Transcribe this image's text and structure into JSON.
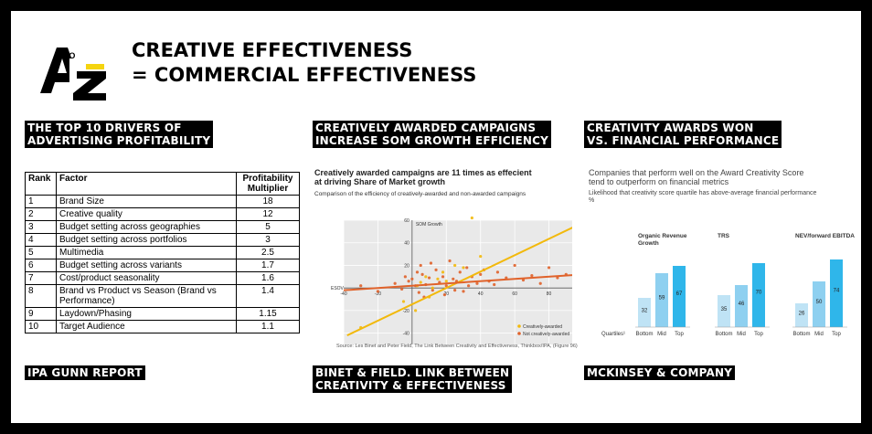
{
  "title": {
    "line1": "CREATIVE EFFECTIVENESS",
    "line2": "= COMMERCIAL EFFECTIVENESS"
  },
  "col1": {
    "heading_line1": "THE TOP 10 DRIVERS OF",
    "heading_line2": "ADVERTISING PROFITABILITY",
    "table": {
      "headers": [
        "Rank",
        "Factor",
        "Profitability Multiplier"
      ],
      "rows": [
        [
          "1",
          "Brand Size",
          "18"
        ],
        [
          "2",
          "Creative quality",
          "12"
        ],
        [
          "3",
          "Budget setting across geographies",
          "5"
        ],
        [
          "4",
          "Budget setting across portfolios",
          "3"
        ],
        [
          "5",
          "Multimedia",
          "2.5"
        ],
        [
          "6",
          "Budget setting across variants",
          "1.7"
        ],
        [
          "7",
          "Cost/product seasonality",
          "1.6"
        ],
        [
          "8",
          "Brand vs Product vs Season (Brand vs Performance)",
          "1.4"
        ],
        [
          "9",
          "Laydown/Phasing",
          "1.15"
        ],
        [
          "10",
          "Target Audience",
          "1.1"
        ]
      ]
    },
    "source": "IPA GUNN REPORT"
  },
  "col2": {
    "heading_line1": "CREATIVELY AWARDED CAMPAIGNS",
    "heading_line2": "INCREASE SOM GROWTH EFFICIENCY",
    "chart": {
      "title_line1": "Creatively awarded campaigns are 11 times as effecient",
      "title_line2": "at driving Share of Market growth",
      "subtitle": "Comparison of the efficiency of creatively-awarded and non-awarded campaigns",
      "source": "Source: Les Binet and Peter Field, The Link Between Creativity and Effectiveness, Thinkbox/IPA, (Figure 96)"
    },
    "source_line1": "BINET & FIELD. LINK BETWEEN",
    "source_line2": "CREATIVITY & EFFECTIVENESS"
  },
  "col3": {
    "heading_line1": "CREATIVITY AWARDS WON",
    "heading_line2": "VS. FINANCIAL PERFORMANCE",
    "chart": {
      "title_line1": "Companies that perform well on the Award Creativity Score",
      "title_line2": "tend to outperform on financial metrics",
      "subtitle_line1": "Likelihood that creativity score quartile has above-average financial performance",
      "subtitle_line2": "%"
    },
    "source": "MCKINSEY & COMPANY"
  },
  "chart_data": [
    {
      "type": "scatter",
      "xlabel": "",
      "ylabel": "SOM Growth",
      "x_axis_name": "ESOV",
      "xlim": [
        -40,
        100
      ],
      "ylim": [
        -50,
        60
      ],
      "xticks": [
        -40,
        -20,
        0,
        20,
        40,
        60,
        80,
        100
      ],
      "yticks": [
        -40,
        -20,
        0,
        20,
        40,
        60
      ],
      "legend": "bottom-right",
      "colors": {
        "awarded": "#f2b90c",
        "not_awarded": "#e0622a"
      },
      "series": [
        {
          "name": "Creatively-awarded",
          "trend": {
            "x0": -38,
            "y0": -42,
            "x1": 100,
            "y1": 58
          },
          "points": [
            [
              -30,
              -35
            ],
            [
              -5,
              -12
            ],
            [
              2,
              -20
            ],
            [
              5,
              5
            ],
            [
              8,
              10
            ],
            [
              12,
              0
            ],
            [
              15,
              8
            ],
            [
              18,
              14
            ],
            [
              25,
              20
            ],
            [
              30,
              18
            ],
            [
              40,
              28
            ],
            [
              35,
              62
            ],
            [
              10,
              -8
            ],
            [
              20,
              6
            ],
            [
              3,
              2
            ]
          ]
        },
        {
          "name": "Not creatively-awarded",
          "trend": {
            "x0": -40,
            "y0": -2,
            "x1": 100,
            "y1": 12
          },
          "points": [
            [
              -30,
              2
            ],
            [
              -20,
              -3
            ],
            [
              -10,
              4
            ],
            [
              -6,
              -1
            ],
            [
              -2,
              6
            ],
            [
              0,
              8
            ],
            [
              2,
              2
            ],
            [
              4,
              -4
            ],
            [
              6,
              12
            ],
            [
              8,
              3
            ],
            [
              10,
              9
            ],
            [
              12,
              -2
            ],
            [
              14,
              16
            ],
            [
              16,
              5
            ],
            [
              18,
              10
            ],
            [
              20,
              2
            ],
            [
              22,
              24
            ],
            [
              24,
              8
            ],
            [
              26,
              6
            ],
            [
              28,
              14
            ],
            [
              30,
              -3
            ],
            [
              32,
              18
            ],
            [
              35,
              10
            ],
            [
              38,
              4
            ],
            [
              40,
              12
            ],
            [
              45,
              6
            ],
            [
              50,
              14
            ],
            [
              55,
              9
            ],
            [
              60,
              20
            ],
            [
              65,
              7
            ],
            [
              70,
              11
            ],
            [
              75,
              4
            ],
            [
              80,
              18
            ],
            [
              85,
              9
            ],
            [
              90,
              12
            ],
            [
              95,
              6
            ],
            [
              5,
              20
            ],
            [
              7,
              -8
            ],
            [
              -4,
              10
            ],
            [
              3,
              14
            ],
            [
              11,
              22
            ],
            [
              19,
              -6
            ],
            [
              25,
              -2
            ],
            [
              33,
              2
            ],
            [
              42,
              16
            ],
            [
              48,
              3
            ]
          ]
        }
      ]
    },
    {
      "type": "bar",
      "quartile_label": "Quartiles¹",
      "categories": [
        "Bottom",
        "Mid",
        "Top"
      ],
      "bar_colors": [
        "#bfe3f5",
        "#8ed0f0",
        "#2fb6ea"
      ],
      "ylim": [
        0,
        100
      ],
      "groups": [
        {
          "name": "Organic Revenue Growth",
          "name_line1": "Organic Revenue",
          "name_line2": "Growth",
          "values": [
            32,
            59,
            67
          ]
        },
        {
          "name": "TRS",
          "name_line1": "TRS",
          "name_line2": "",
          "values": [
            35,
            46,
            70
          ]
        },
        {
          "name": "NEV/forward EBITDA",
          "name_line1": "NEV/forward EBITDA",
          "name_line2": "",
          "values": [
            26,
            50,
            74
          ]
        }
      ]
    }
  ]
}
